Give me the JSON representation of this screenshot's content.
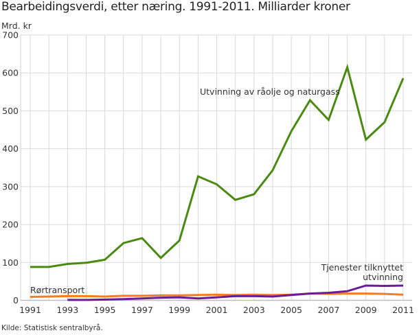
{
  "title": "Bearbeidingsverdi, etter næring. 1991-2011. Milliarder kroner",
  "unit_label": "Mrd. kr",
  "source": "Kilde: Statistisk sentralbyrå.",
  "chart_data": {
    "type": "line",
    "title": "Bearbeidingsverdi, etter næring. 1991-2011. Milliarder kroner",
    "xlabel": "",
    "ylabel": "Mrd. kr",
    "ylim": [
      0,
      700
    ],
    "yticks": [
      0,
      100,
      200,
      300,
      400,
      500,
      600,
      700
    ],
    "x": [
      1991,
      1992,
      1993,
      1994,
      1995,
      1996,
      1997,
      1998,
      1999,
      2000,
      2001,
      2002,
      2003,
      2004,
      2005,
      2006,
      2007,
      2008,
      2009,
      2010,
      2011
    ],
    "xtick_labels": [
      "1991",
      "1993",
      "1995",
      "1997",
      "1999",
      "2001",
      "2003",
      "2005",
      "2007",
      "2009",
      "2011"
    ],
    "grid": true,
    "legend": "inline labels",
    "series": [
      {
        "name": "Utvinning av råolje og naturgass",
        "color": "#4a8a10",
        "values": [
          88,
          88,
          96,
          99,
          107,
          151,
          164,
          112,
          158,
          327,
          306,
          265,
          280,
          343,
          446,
          528,
          476,
          615,
          424,
          470,
          586
        ]
      },
      {
        "name": "Rørtransport",
        "color": "#f07d28",
        "values": [
          9,
          10,
          11,
          11,
          10,
          12,
          12,
          13,
          13,
          14,
          15,
          14,
          15,
          14,
          15,
          18,
          17,
          18,
          18,
          17,
          15
        ]
      },
      {
        "name": "Tjenester tilknyttet utvinning",
        "color": "#6a1b9a",
        "values": [
          null,
          null,
          1,
          1,
          2,
          3,
          5,
          7,
          8,
          5,
          8,
          11,
          11,
          10,
          14,
          18,
          20,
          24,
          39,
          38,
          39
        ]
      }
    ],
    "labels": [
      {
        "text": "Utvinning av råolje og naturgass",
        "series": 0
      },
      {
        "text": "Rørtransport",
        "series": 1
      },
      {
        "text_lines": [
          "Tjenester tilknyttet",
          "utvinning"
        ],
        "series": 2
      }
    ]
  }
}
